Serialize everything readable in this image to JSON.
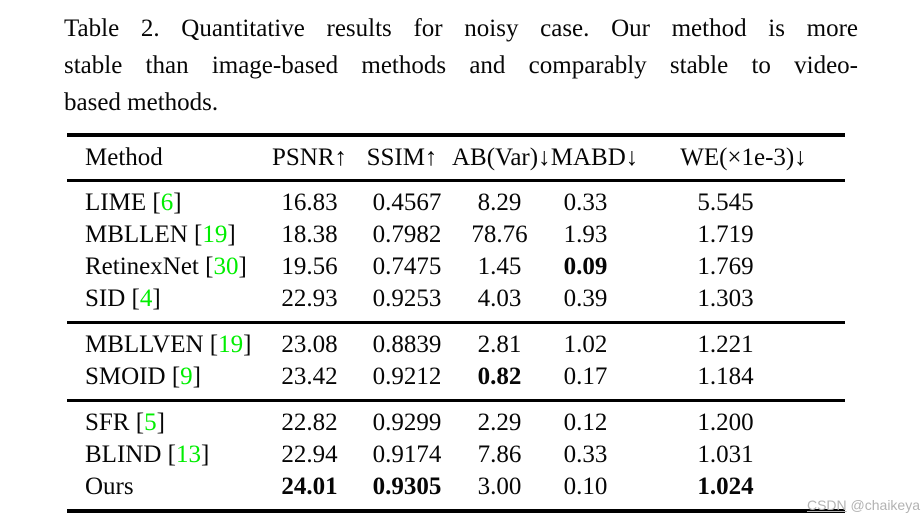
{
  "caption": {
    "lines": [
      "Table 2. Quantitative results for noisy case. Our method is more",
      "stable than image-based methods and comparably stable to video-",
      "based methods."
    ],
    "full_text": "Table 2. Quantitative results for noisy case. Our method is more stable than image-based methods and comparably stable to video-based methods."
  },
  "table": {
    "columns": [
      "Method",
      "PSNR↑",
      "SSIM↑",
      "AB(Var)↓",
      "MABD↓",
      "WE(×1e-3)↓"
    ],
    "groups": [
      {
        "name": "image-based-methods",
        "rows": [
          {
            "method": "LIME",
            "cite": "6",
            "values": [
              "16.83",
              "0.4567",
              "8.29",
              "0.33",
              "5.545"
            ],
            "bold": []
          },
          {
            "method": "MBLLEN",
            "cite": "19",
            "values": [
              "18.38",
              "0.7982",
              "78.76",
              "1.93",
              "1.719"
            ],
            "bold": []
          },
          {
            "method": "RetinexNet",
            "cite": "30",
            "values": [
              "19.56",
              "0.7475",
              "1.45",
              "0.09",
              "1.769"
            ],
            "bold": [
              3
            ]
          },
          {
            "method": "SID",
            "cite": "4",
            "values": [
              "22.93",
              "0.9253",
              "4.03",
              "0.39",
              "1.303"
            ],
            "bold": []
          }
        ]
      },
      {
        "name": "video-based-methods",
        "rows": [
          {
            "method": "MBLLVEN",
            "cite": "19",
            "values": [
              "23.08",
              "0.8839",
              "2.81",
              "1.02",
              "1.221"
            ],
            "bold": []
          },
          {
            "method": "SMOID",
            "cite": "9",
            "values": [
              "23.42",
              "0.9212",
              "0.82",
              "0.17",
              "1.184"
            ],
            "bold": [
              2
            ]
          }
        ]
      },
      {
        "name": "ours-group",
        "rows": [
          {
            "method": "SFR",
            "cite": "5",
            "values": [
              "22.82",
              "0.9299",
              "2.29",
              "0.12",
              "1.200"
            ],
            "bold": []
          },
          {
            "method": "BLIND",
            "cite": "13",
            "values": [
              "22.94",
              "0.9174",
              "7.86",
              "0.33",
              "1.031"
            ],
            "bold": []
          },
          {
            "method": "Ours",
            "cite": null,
            "values": [
              "24.01",
              "0.9305",
              "3.00",
              "0.10",
              "1.024"
            ],
            "bold": [
              0,
              1,
              4
            ]
          }
        ]
      }
    ]
  },
  "watermark": {
    "brand": "CSDN",
    "user": "@chaikeya"
  },
  "colors": {
    "citation_green": "#00ee00",
    "text_black": "#060606",
    "watermark_gray": "#b3b3b3",
    "background": "#ffffff"
  }
}
